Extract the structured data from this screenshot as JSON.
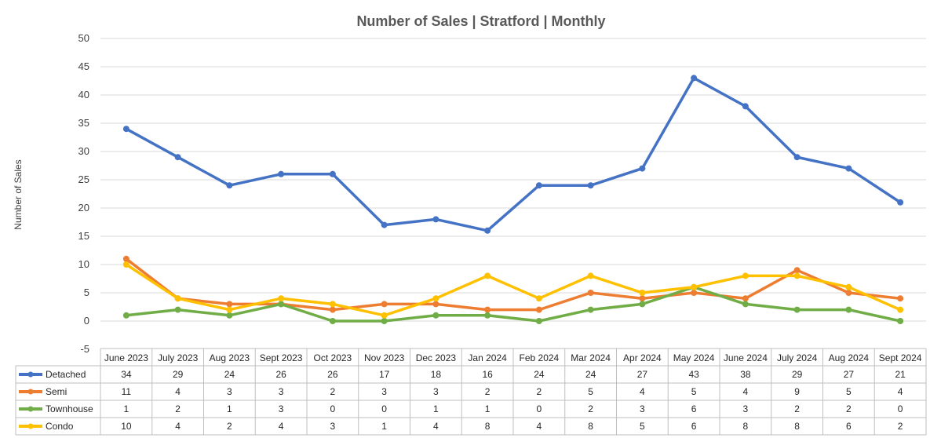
{
  "chart_data": {
    "type": "line",
    "title": "Number of Sales | Stratford | Monthly",
    "xlabel": "",
    "ylabel": "Number of Sales",
    "ylim": [
      -5,
      50
    ],
    "yticks": [
      -5,
      0,
      5,
      10,
      15,
      20,
      25,
      30,
      35,
      40,
      45,
      50
    ],
    "grid": true,
    "legend": "data-table-left",
    "categories": [
      "June 2023",
      "July 2023",
      "Aug 2023",
      "Sept 2023",
      "Oct 2023",
      "Nov 2023",
      "Dec 2023",
      "Jan 2024",
      "Feb 2024",
      "Mar 2024",
      "Apr 2024",
      "May 2024",
      "June 2024",
      "July 2024",
      "Aug 2024",
      "Sept 2024"
    ],
    "series": [
      {
        "name": "Detached",
        "color": "#4472C4",
        "values": [
          34,
          29,
          24,
          26,
          26,
          17,
          18,
          16,
          24,
          24,
          27,
          43,
          38,
          29,
          27,
          21
        ]
      },
      {
        "name": "Semi",
        "color": "#ED7D31",
        "values": [
          11,
          4,
          3,
          3,
          2,
          3,
          3,
          2,
          2,
          5,
          4,
          5,
          4,
          9,
          5,
          4
        ]
      },
      {
        "name": "Townhouse",
        "color": "#70AD47",
        "values": [
          1,
          2,
          1,
          3,
          0,
          0,
          1,
          1,
          0,
          2,
          3,
          6,
          3,
          2,
          2,
          0
        ]
      },
      {
        "name": "Condo",
        "color": "#FFC000",
        "values": [
          10,
          4,
          2,
          4,
          3,
          1,
          4,
          8,
          4,
          8,
          5,
          6,
          8,
          8,
          6,
          2
        ]
      }
    ]
  }
}
